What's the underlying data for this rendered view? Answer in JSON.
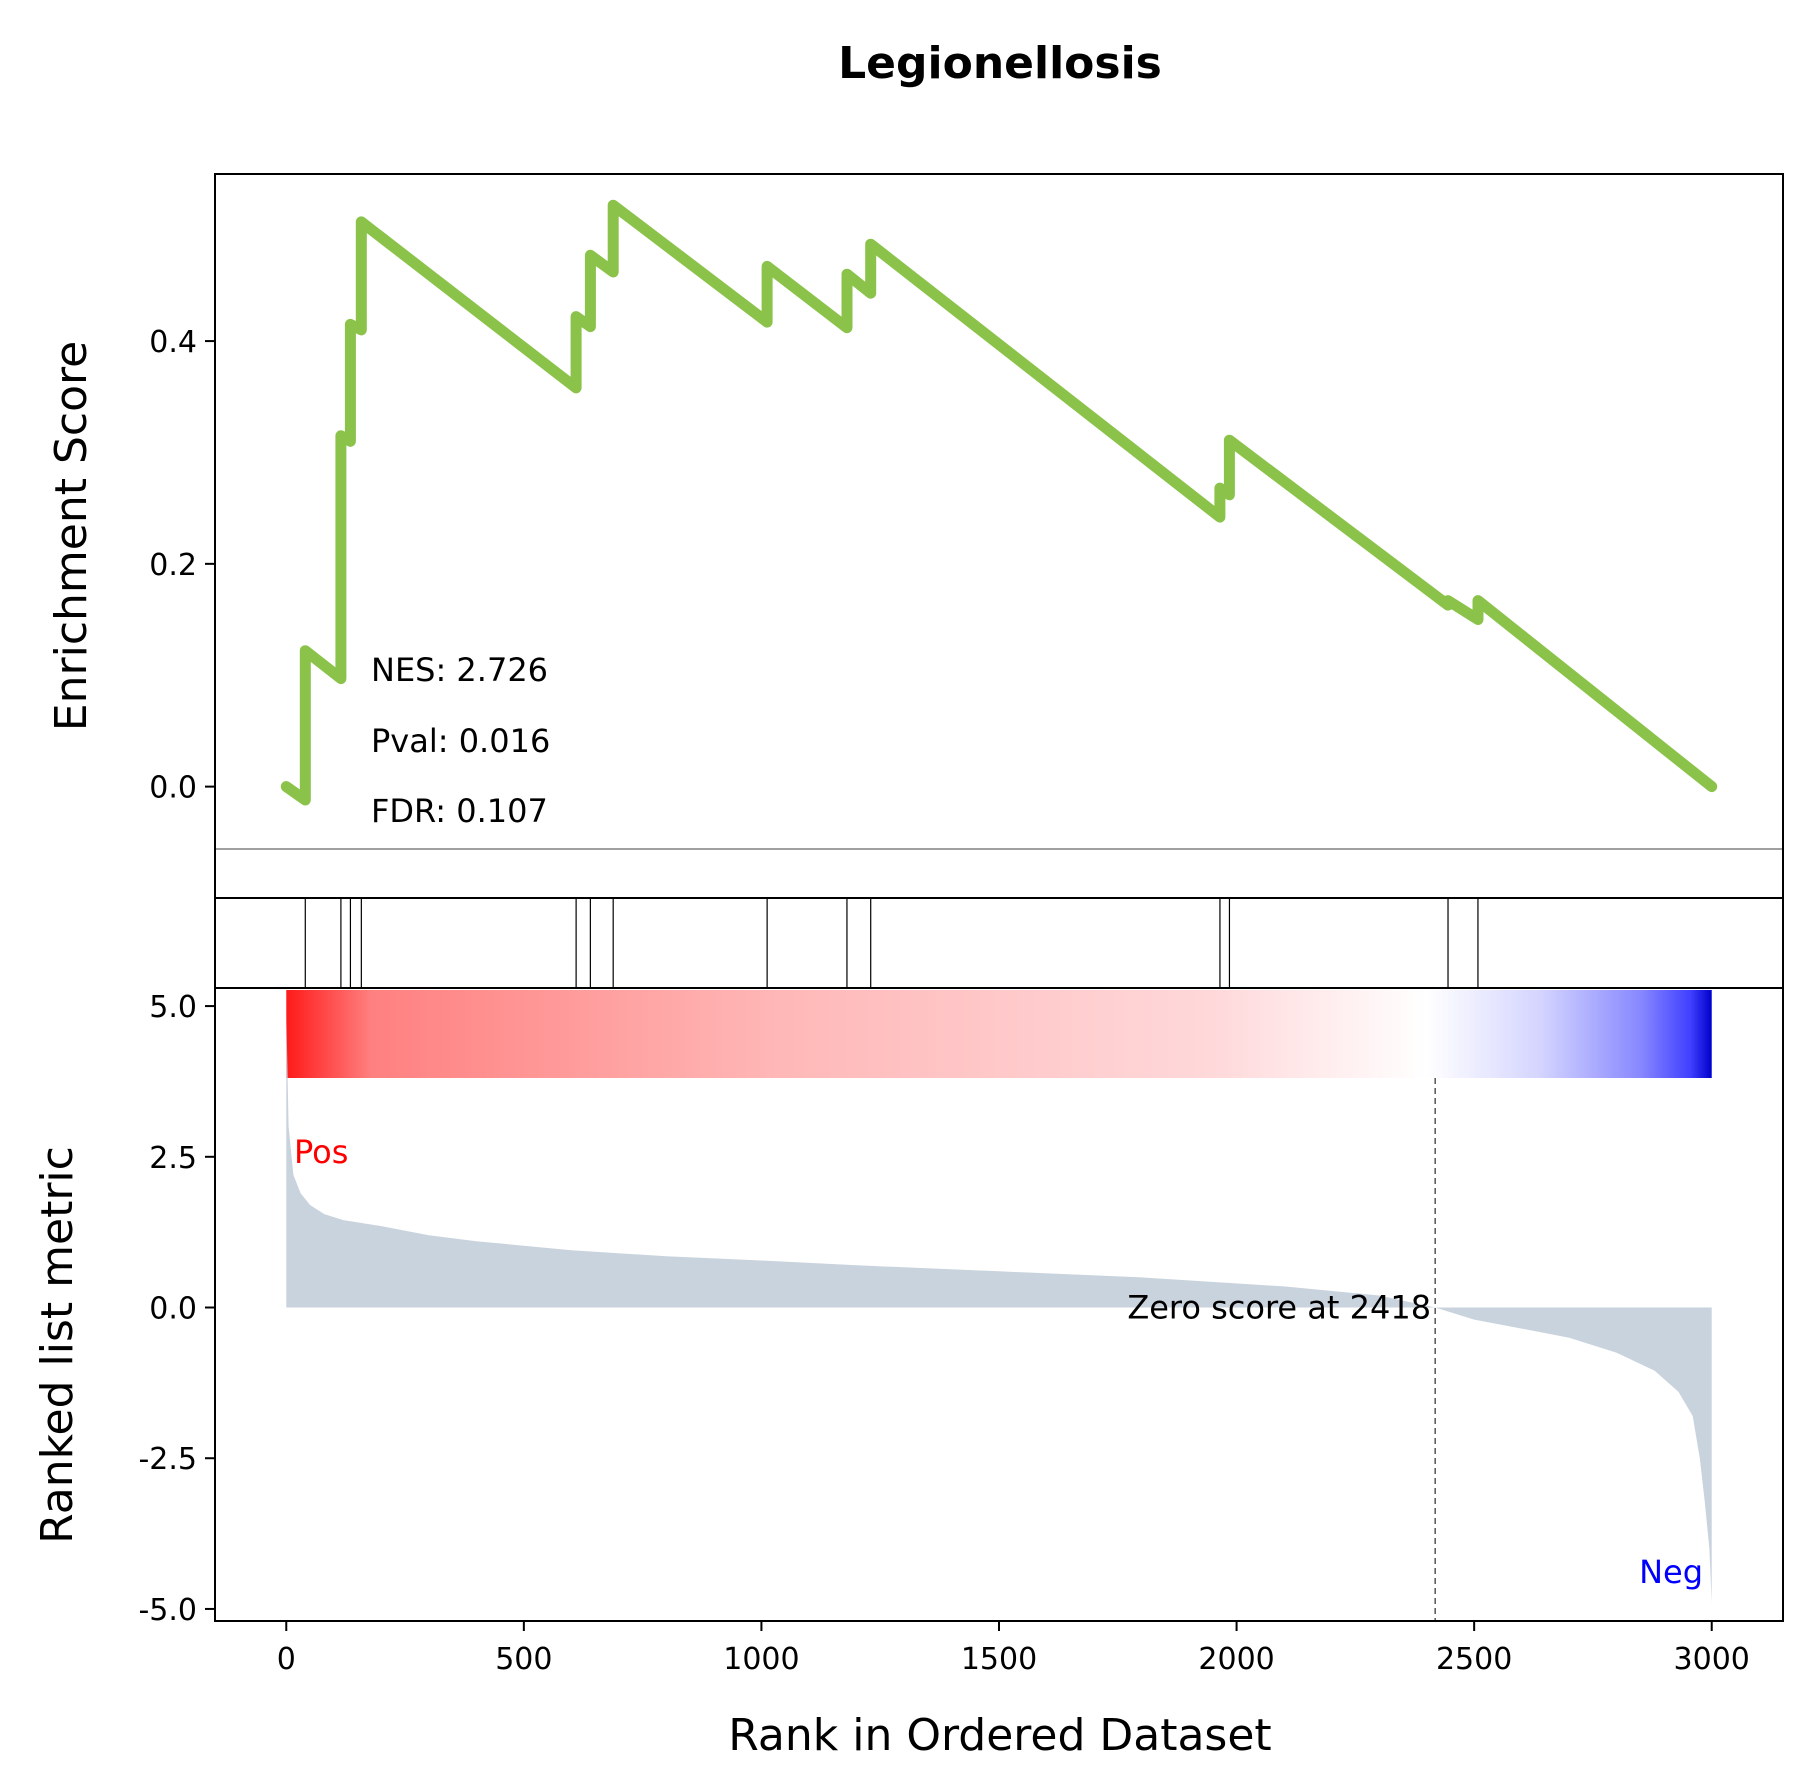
{
  "chart_data": {
    "type": "line",
    "title": "Legionellosis",
    "x_axis": {
      "label": "Rank in Ordered Dataset",
      "range": [
        -150,
        3150
      ],
      "ticks": [
        0,
        500,
        1000,
        1500,
        2000,
        2500,
        3000
      ],
      "tick_labels": [
        "0",
        "500",
        "1000",
        "1500",
        "2000",
        "2500",
        "3000"
      ]
    },
    "enrichment_panel": {
      "ylabel": "Enrichment Score",
      "ylim": [
        -0.1,
        0.55
      ],
      "ticks": [
        0.0,
        0.2,
        0.4
      ],
      "tick_labels": [
        "0.0",
        "0.2",
        "0.4"
      ],
      "line_color": "#8bc34a",
      "zero_line": true,
      "stats": {
        "nes": "NES: 2.726",
        "pval": "Pval: 0.016",
        "fdr": "FDR: 0.107"
      },
      "running_es": [
        {
          "x": 0,
          "y": 0.0
        },
        {
          "x": 40,
          "y": -0.012
        },
        {
          "x": 40,
          "y": 0.122
        },
        {
          "x": 115,
          "y": 0.097
        },
        {
          "x": 115,
          "y": 0.315
        },
        {
          "x": 135,
          "y": 0.31
        },
        {
          "x": 135,
          "y": 0.415
        },
        {
          "x": 158,
          "y": 0.41
        },
        {
          "x": 158,
          "y": 0.507
        },
        {
          "x": 610,
          "y": 0.358
        },
        {
          "x": 610,
          "y": 0.422
        },
        {
          "x": 640,
          "y": 0.413
        },
        {
          "x": 640,
          "y": 0.477
        },
        {
          "x": 688,
          "y": 0.462
        },
        {
          "x": 688,
          "y": 0.522
        },
        {
          "x": 1012,
          "y": 0.417
        },
        {
          "x": 1012,
          "y": 0.467
        },
        {
          "x": 1180,
          "y": 0.412
        },
        {
          "x": 1180,
          "y": 0.46
        },
        {
          "x": 1230,
          "y": 0.443
        },
        {
          "x": 1230,
          "y": 0.487
        },
        {
          "x": 1965,
          "y": 0.242
        },
        {
          "x": 1965,
          "y": 0.268
        },
        {
          "x": 1985,
          "y": 0.262
        },
        {
          "x": 1985,
          "y": 0.311
        },
        {
          "x": 2445,
          "y": 0.163
        },
        {
          "x": 2445,
          "y": 0.167
        },
        {
          "x": 2508,
          "y": 0.15
        },
        {
          "x": 2508,
          "y": 0.167
        },
        {
          "x": 3000,
          "y": 0.0
        }
      ]
    },
    "hit_panel": {
      "hits": [
        40,
        115,
        135,
        158,
        610,
        640,
        688,
        1012,
        1180,
        1230,
        1965,
        1985,
        2445,
        2508
      ]
    },
    "ranked_panel": {
      "ylabel": "Ranked list metric",
      "ylim": [
        -5.2,
        5.3
      ],
      "ticks": [
        5.0,
        2.5,
        0.0,
        -2.5,
        -5.0
      ],
      "tick_labels": [
        "5.0",
        "2.5",
        "0.0",
        "-2.5",
        "-5.0"
      ],
      "fill_color": "#c9d3dd",
      "pos_label": "Pos",
      "pos_color": "#ff0000",
      "neg_label": "Neg",
      "neg_color": "#0000ff",
      "zero_cross_rank": 2418,
      "zero_cross_label": "Zero score at 2418",
      "profile": [
        {
          "x": 0,
          "y": 4.9
        },
        {
          "x": 5,
          "y": 3.0
        },
        {
          "x": 15,
          "y": 2.2
        },
        {
          "x": 30,
          "y": 1.9
        },
        {
          "x": 50,
          "y": 1.7
        },
        {
          "x": 80,
          "y": 1.55
        },
        {
          "x": 120,
          "y": 1.45
        },
        {
          "x": 200,
          "y": 1.35
        },
        {
          "x": 300,
          "y": 1.2
        },
        {
          "x": 400,
          "y": 1.1
        },
        {
          "x": 600,
          "y": 0.95
        },
        {
          "x": 800,
          "y": 0.85
        },
        {
          "x": 1000,
          "y": 0.78
        },
        {
          "x": 1200,
          "y": 0.7
        },
        {
          "x": 1500,
          "y": 0.6
        },
        {
          "x": 1800,
          "y": 0.5
        },
        {
          "x": 2100,
          "y": 0.35
        },
        {
          "x": 2300,
          "y": 0.2
        },
        {
          "x": 2418,
          "y": 0.0
        },
        {
          "x": 2500,
          "y": -0.2
        },
        {
          "x": 2600,
          "y": -0.35
        },
        {
          "x": 2700,
          "y": -0.5
        },
        {
          "x": 2800,
          "y": -0.75
        },
        {
          "x": 2880,
          "y": -1.05
        },
        {
          "x": 2930,
          "y": -1.4
        },
        {
          "x": 2960,
          "y": -1.8
        },
        {
          "x": 2975,
          "y": -2.5
        },
        {
          "x": 2985,
          "y": -3.2
        },
        {
          "x": 2995,
          "y": -4.0
        },
        {
          "x": 3000,
          "y": -4.9
        }
      ]
    }
  }
}
